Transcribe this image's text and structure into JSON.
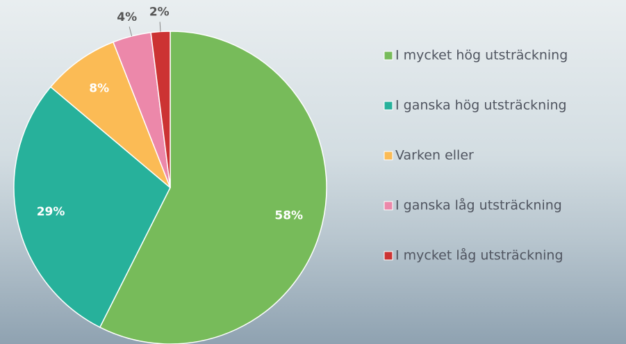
{
  "chart_data": {
    "type": "pie",
    "categories": [
      "I mycket hög utsträckning",
      "I ganska hög utsträckning",
      "Varken eller",
      "I ganska låg utsträckning",
      "I mycket låg utsträckning"
    ],
    "values": [
      58,
      29,
      8,
      4,
      2
    ],
    "value_labels": [
      "58%",
      "29%",
      "8%",
      "4%",
      "2%"
    ],
    "colors": [
      "#77bb5a",
      "#27b19b",
      "#fbbb55",
      "#ec88aa",
      "#cc3333"
    ],
    "legend": "right"
  }
}
